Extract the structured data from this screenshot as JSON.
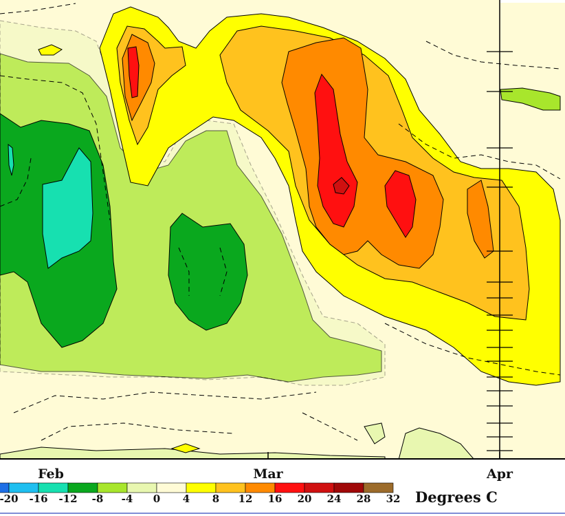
{
  "chart_data": {
    "type": "heatmap",
    "title": "",
    "xlabel": "",
    "ylabel": "",
    "x_ticks": [
      "Feb",
      "Mar",
      "Apr"
    ],
    "units": "Degrees C",
    "contour_levels": [
      -20,
      -16,
      -12,
      -8,
      -4,
      0,
      4,
      8,
      12,
      16,
      20,
      24,
      28,
      32
    ],
    "colorbar": [
      {
        "from": -24,
        "to": -20,
        "color": "#1e6fe6"
      },
      {
        "from": -20,
        "to": -16,
        "color": "#1fbff0"
      },
      {
        "from": -16,
        "to": -12,
        "color": "#17e0b0"
      },
      {
        "from": -12,
        "to": -8,
        "color": "#0aa81e"
      },
      {
        "from": -8,
        "to": -4,
        "color": "#a8e62c"
      },
      {
        "from": -4,
        "to": 0,
        "color": "#e8f7b0"
      },
      {
        "from": 0,
        "to": 4,
        "color": "#fffbd6"
      },
      {
        "from": 4,
        "to": 8,
        "color": "#ffff00"
      },
      {
        "from": 8,
        "to": 12,
        "color": "#ffc21e"
      },
      {
        "from": 12,
        "to": 16,
        "color": "#ff8a00"
      },
      {
        "from": 16,
        "to": 20,
        "color": "#ff1010"
      },
      {
        "from": 20,
        "to": 24,
        "color": "#d01010"
      },
      {
        "from": 24,
        "to": 28,
        "color": "#a00808"
      },
      {
        "from": 28,
        "to": 32,
        "color": "#9c6b2a"
      }
    ],
    "colorbar_label_levels": [
      -20,
      -16,
      -12,
      -8,
      -4,
      0,
      4,
      8,
      12,
      16,
      20,
      24,
      28,
      32
    ],
    "grid": false,
    "legend": "bottom"
  }
}
